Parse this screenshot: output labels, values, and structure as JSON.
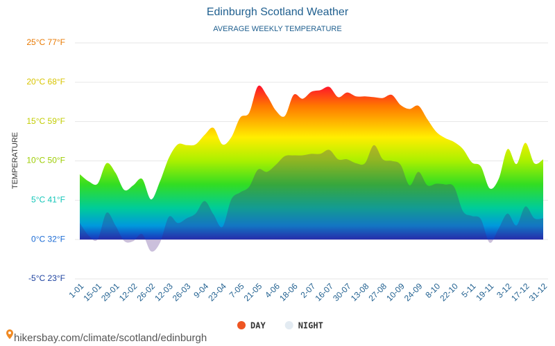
{
  "chart_data": {
    "type": "area",
    "title": "Edinburgh Scotland Weather",
    "subtitle": "AVERAGE WEEKLY TEMPERATURE",
    "y_label": "TEMPERATURE",
    "footer": "hikersbay.com/climate/scotland/edinburgh",
    "categories": [
      "1-01",
      null,
      "15-01",
      null,
      "29-01",
      null,
      "12-02",
      null,
      "26-02",
      null,
      "12-03",
      null,
      "26-03",
      null,
      "9-04",
      null,
      "23-04",
      null,
      "7-05",
      null,
      "21-05",
      null,
      "4-06",
      null,
      "18-06",
      null,
      "2-07",
      null,
      "16-07",
      null,
      "30-07",
      null,
      "13-08",
      null,
      "27-08",
      null,
      "10-09",
      null,
      "24-09",
      null,
      "8-10",
      null,
      "22-10",
      null,
      "5-11",
      null,
      "19-11",
      null,
      "3-12",
      null,
      "17-12",
      null,
      "31-12"
    ],
    "series": [
      {
        "name": "DAY",
        "color": "#ee5522",
        "values": [
          8.3,
          7.4,
          7.1,
          9.7,
          8.5,
          6.3,
          6.9,
          7.7,
          5.1,
          7.4,
          10.4,
          12.1,
          12.0,
          12.1,
          13.3,
          14.2,
          12.1,
          13.0,
          15.5,
          16.1,
          19.5,
          18.3,
          16.4,
          15.7,
          18.4,
          17.9,
          18.8,
          19.0,
          19.4,
          18.1,
          18.7,
          18.2,
          18.2,
          18.1,
          18.0,
          18.4,
          17.1,
          16.6,
          17.0,
          15.3,
          13.7,
          12.9,
          12.4,
          11.5,
          9.8,
          9.3,
          6.5,
          7.7,
          11.5,
          9.6,
          12.3,
          9.7,
          10.2
        ]
      },
      {
        "name": "NIGHT",
        "color": "#e3ebf2",
        "values": [
          2.1,
          0.5,
          0.0,
          3.4,
          1.8,
          -0.2,
          -0.2,
          0.7,
          -1.5,
          -0.4,
          2.9,
          2.1,
          2.7,
          3.3,
          4.9,
          3.2,
          1.6,
          5.1,
          6.0,
          6.7,
          8.9,
          8.6,
          9.5,
          10.6,
          10.7,
          10.7,
          10.9,
          10.9,
          11.4,
          10.2,
          10.2,
          9.7,
          9.7,
          12.0,
          10.2,
          10.0,
          9.5,
          6.9,
          8.6,
          6.9,
          7.1,
          7.0,
          6.7,
          3.6,
          3.0,
          2.6,
          -0.4,
          1.4,
          3.3,
          1.8,
          4.2,
          2.7,
          2.7
        ]
      }
    ],
    "ylim": [
      -5,
      25
    ],
    "yticks": [
      {
        "value": -5,
        "label": "-5°C 23°F"
      },
      {
        "value": 0,
        "label": "0°C 32°F"
      },
      {
        "value": 5,
        "label": "5°C 41°F"
      },
      {
        "value": 10,
        "label": "10°C 50°F"
      },
      {
        "value": 15,
        "label": "15°C 59°F"
      },
      {
        "value": 20,
        "label": "20°C 68°F"
      },
      {
        "value": 25,
        "label": "25°C 77°F"
      }
    ],
    "ytick_colors": [
      "#1a3f9e",
      "#1a6ad4",
      "#12c6b8",
      "#9ccc00",
      "#c2cc00",
      "#d8c400",
      "#e87800"
    ],
    "grid": true
  }
}
